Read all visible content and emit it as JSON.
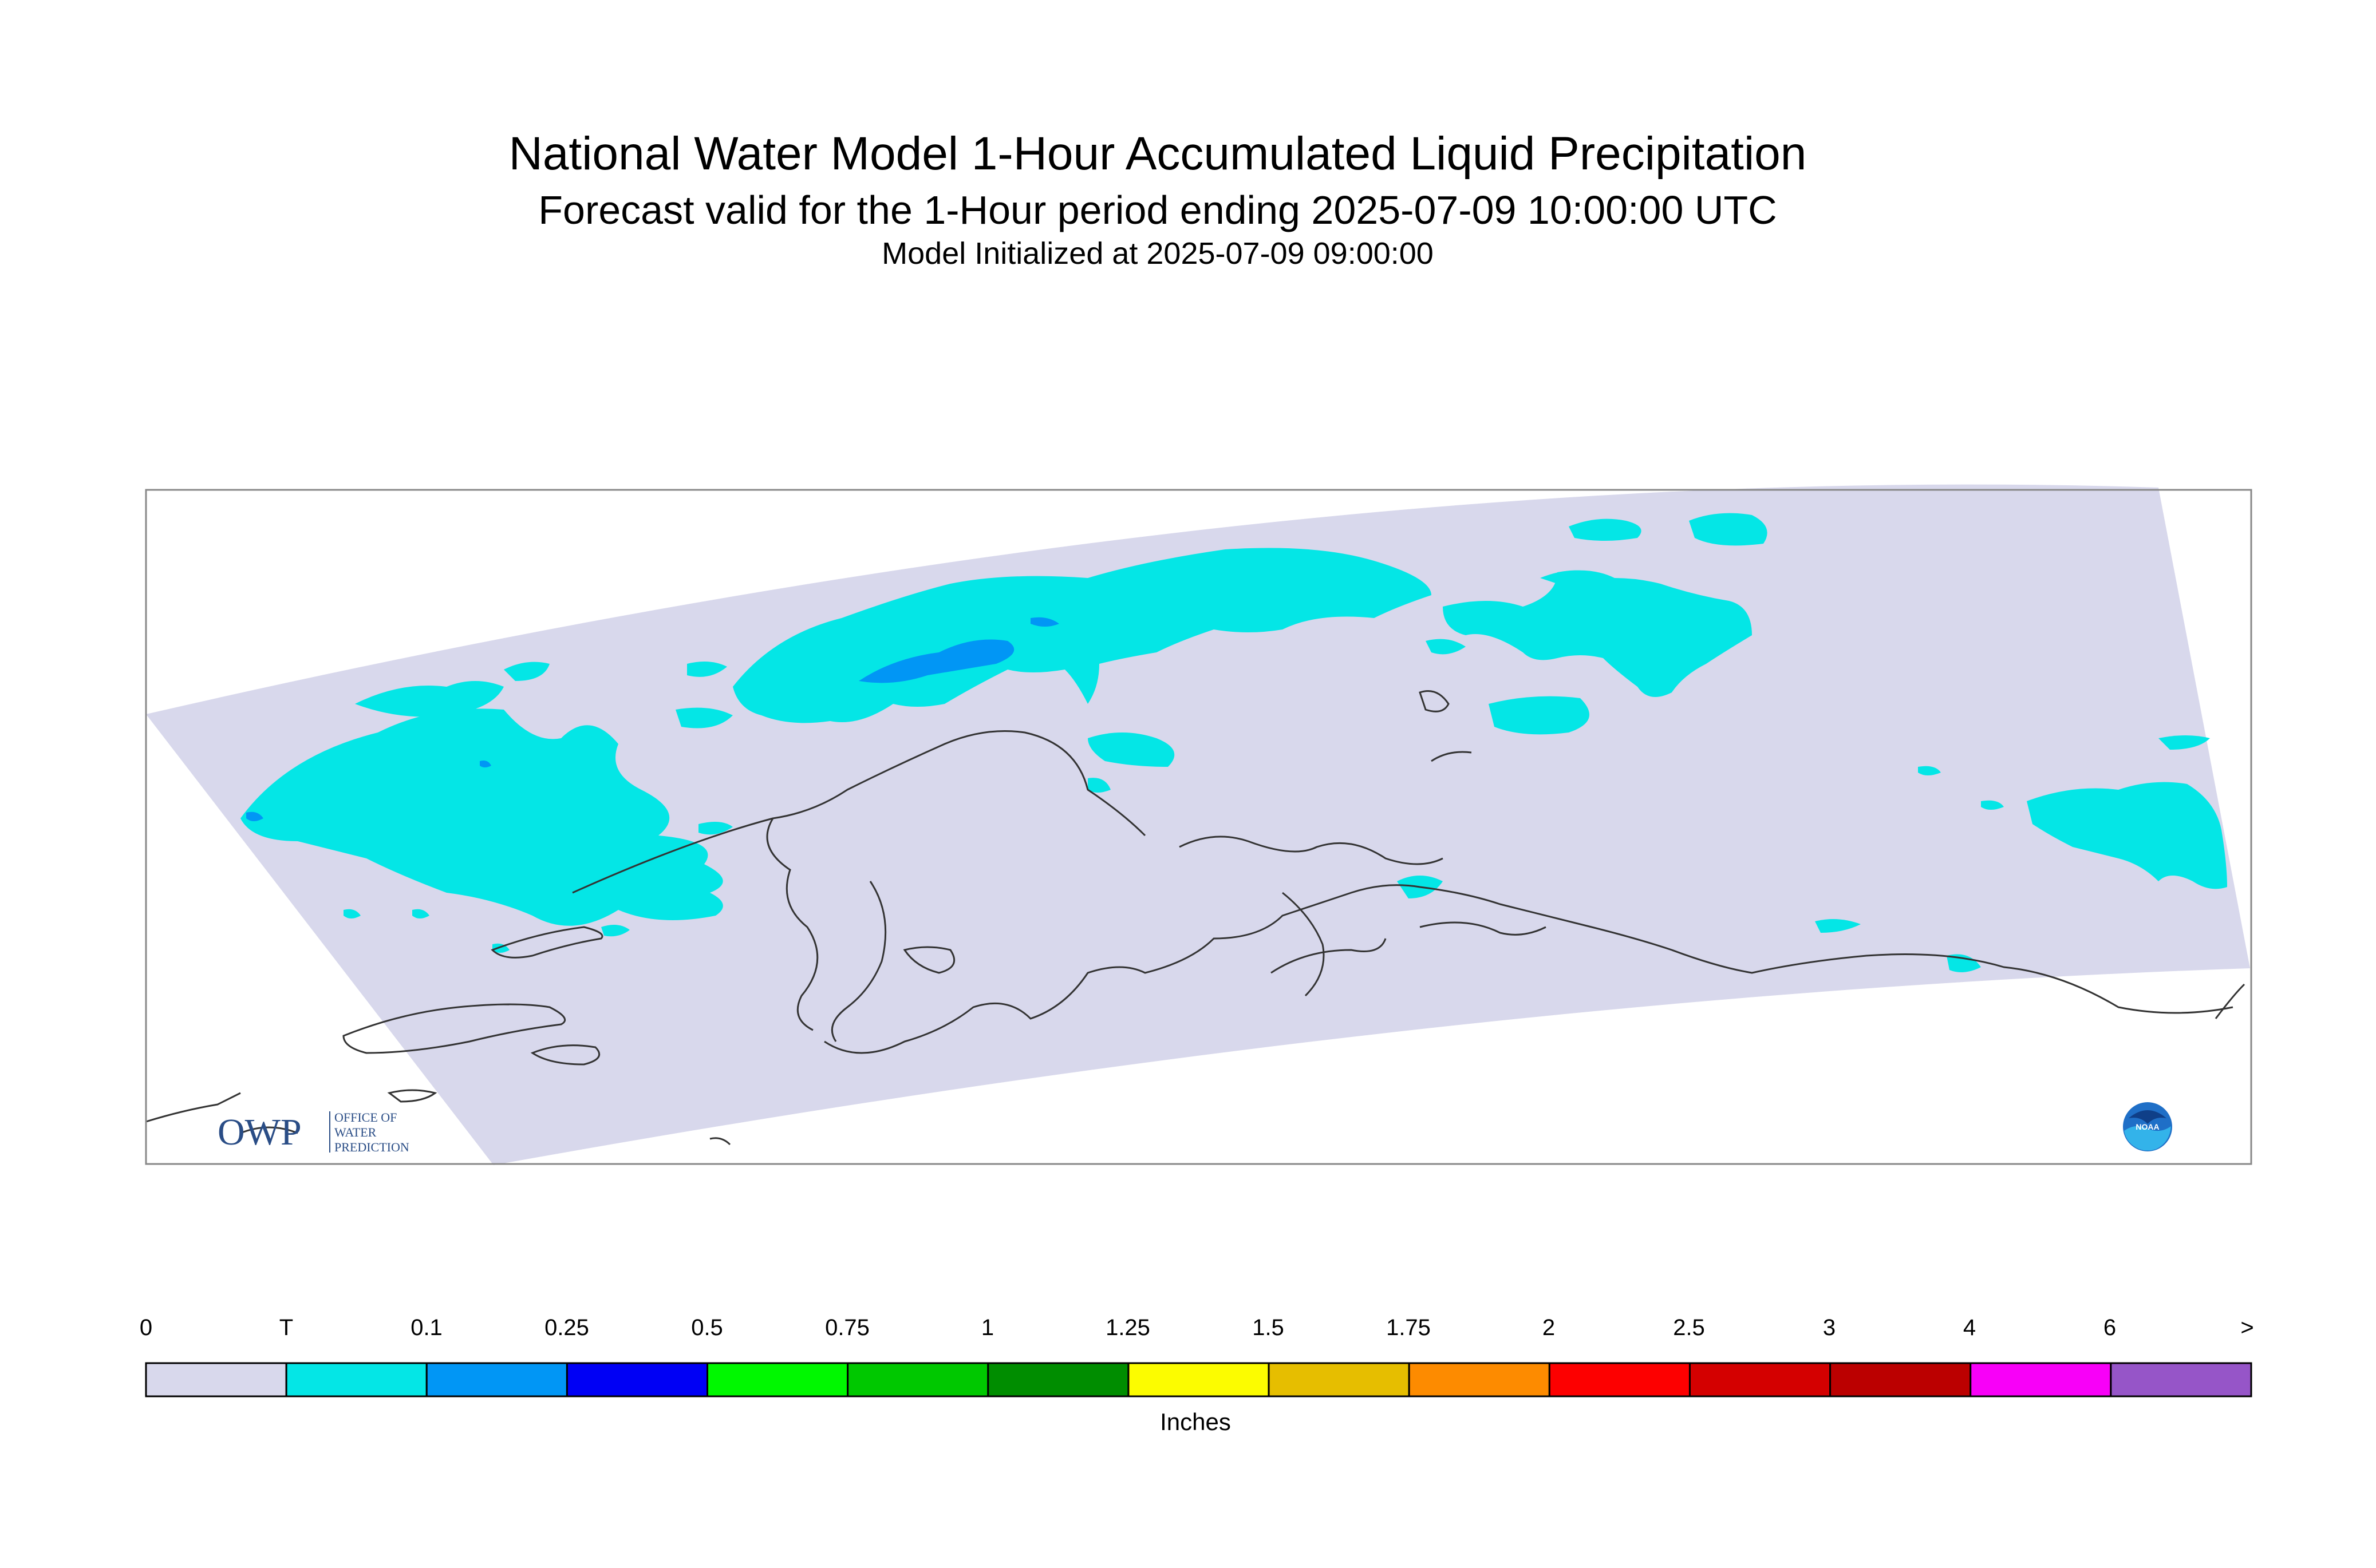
{
  "header": {
    "title": "National Water Model 1-Hour Accumulated Liquid Precipitation",
    "subtitle": "Forecast valid for the 1-Hour period ending 2025-07-09 10:00:00 UTC",
    "init_line": "Model Initialized at 2025-07-09 09:00:00"
  },
  "legend": {
    "ticks": [
      "0",
      "T",
      "0.1",
      "0.25",
      "0.5",
      "0.75",
      "1",
      "1.25",
      "1.5",
      "1.75",
      "2",
      "2.5",
      "3",
      "4",
      "6",
      ">"
    ],
    "colors": [
      "#d8d8ec",
      "#04e6e6",
      "#0196f5",
      "#0000f5",
      "#00f800",
      "#00c800",
      "#008d00",
      "#fcfc00",
      "#e6be00",
      "#fd8b00",
      "#fd0000",
      "#d40000",
      "#bb0000",
      "#f800f8",
      "#9655c8"
    ],
    "units": "Inches"
  },
  "logos": {
    "owp": {
      "mark": "OWP",
      "line1": "OFFICE OF",
      "line2": "WATER",
      "line3": "PREDICTION"
    },
    "noaa": {
      "mark": "NOAA"
    }
  },
  "map": {
    "domain_color": "#d8d8ec",
    "trace_color": "#04e6e6",
    "light_color": "#0196f5",
    "coast_color": "#333333",
    "frame_color": "#888888"
  }
}
